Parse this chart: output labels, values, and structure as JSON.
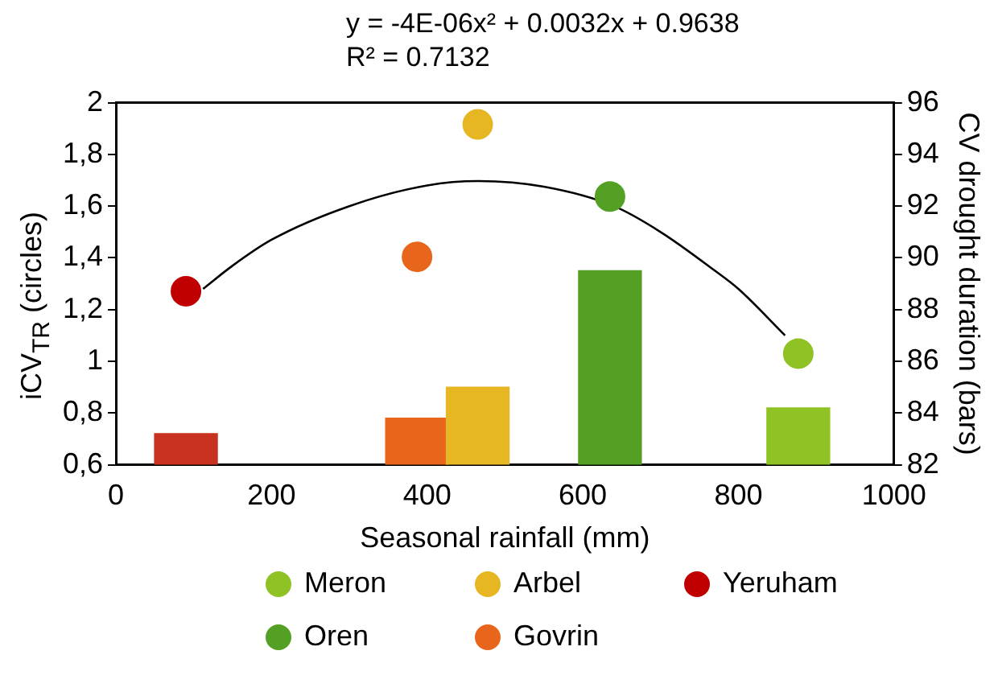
{
  "chart_data": {
    "type": "scatter",
    "xlabel": "Seasonal rainfall (mm)",
    "ylabel": "iCV$_{TR}$ (circles)",
    "y2label": "CV drought duration (bars)",
    "annotations": [
      "y = -4E-06x² + 0.0032x + 0.9638",
      "R² = 0.7132"
    ],
    "xlim": [
      0,
      1000
    ],
    "xticks": [
      0,
      200,
      400,
      600,
      800,
      1000
    ],
    "ylim": [
      0.6,
      2
    ],
    "yticks": [
      {
        "value": 0.6,
        "label": "0,6"
      },
      {
        "value": 0.8,
        "label": "0,8"
      },
      {
        "value": 1,
        "label": "1"
      },
      {
        "value": 1.2,
        "label": "1,2"
      },
      {
        "value": 1.4,
        "label": "1,4"
      },
      {
        "value": 1.6,
        "label": "1,6"
      },
      {
        "value": 1.8,
        "label": "1,8"
      },
      {
        "value": 2,
        "label": "2"
      }
    ],
    "y2lim": [
      82,
      96
    ],
    "y2ticks": [
      82,
      84,
      86,
      88,
      90,
      92,
      94,
      96
    ],
    "grid": false,
    "legend": "bottom",
    "marker": "circle",
    "series": [
      {
        "type": "bar",
        "axis": "y2",
        "x": [
          90,
          387,
          465,
          635,
          877
        ],
        "values": [
          83.2,
          83.8,
          85,
          89.5,
          84.2
        ],
        "colors": [
          "#c8321e",
          "#e8661c",
          "#e6b722",
          "#53a024",
          "#8fc225"
        ]
      },
      {
        "type": "line",
        "color": "#000000",
        "marker": "none",
        "line_style": "solid",
        "x": [
          112,
          150,
          200,
          300,
          400,
          466,
          550,
          640,
          700,
          770,
          800,
          860
        ],
        "values": [
          1.28,
          1.37,
          1.47,
          1.6,
          1.68,
          1.697,
          1.675,
          1.6,
          1.5,
          1.35,
          1.28,
          1.1
        ]
      },
      {
        "name": "Meron",
        "color": "#8fc225",
        "x": [
          877
        ],
        "values": [
          1.03
        ]
      },
      {
        "name": "Arbel",
        "color": "#e6b722",
        "x": [
          465
        ],
        "values": [
          1.916
        ]
      },
      {
        "name": "Yeruham",
        "color": "#c00000",
        "x": [
          90
        ],
        "values": [
          1.271
        ]
      },
      {
        "name": "Oren",
        "color": "#53a024",
        "x": [
          635
        ],
        "values": [
          1.637
        ]
      },
      {
        "name": "Govrin",
        "color": "#e8661c",
        "x": [
          387
        ],
        "values": [
          1.404
        ]
      }
    ]
  }
}
